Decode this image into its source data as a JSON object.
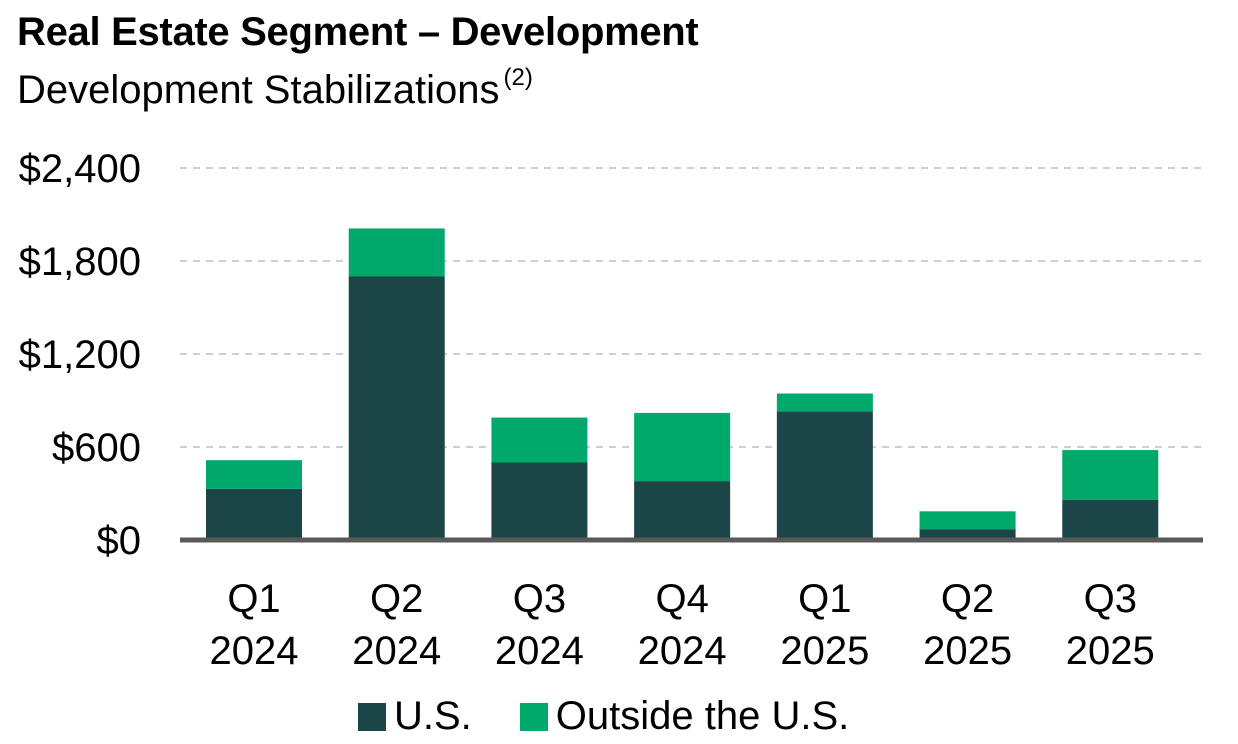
{
  "chart_data": {
    "type": "bar",
    "stacked": true,
    "title": "Real Estate Segment – Development",
    "subtitle": "Development Stabilizations",
    "subtitle_note": "(2)",
    "categories": [
      [
        "Q1",
        "2024"
      ],
      [
        "Q2",
        "2024"
      ],
      [
        "Q3",
        "2024"
      ],
      [
        "Q4",
        "2024"
      ],
      [
        "Q1",
        "2025"
      ],
      [
        "Q2",
        "2025"
      ],
      [
        "Q3",
        "2025"
      ]
    ],
    "series": [
      {
        "name": "U.S.",
        "color": "#1b4546",
        "values": [
          330,
          1700,
          500,
          380,
          830,
          70,
          260
        ]
      },
      {
        "name": "Outside the U.S.",
        "color": "#00a86b",
        "values": [
          185,
          310,
          290,
          440,
          115,
          115,
          320
        ]
      }
    ],
    "ylim": [
      0,
      2400
    ],
    "yticks": [
      {
        "value": 0,
        "label": "$0"
      },
      {
        "value": 600,
        "label": "$600"
      },
      {
        "value": 1200,
        "label": "$1,200"
      },
      {
        "value": 1800,
        "label": "$1,800"
      },
      {
        "value": 2400,
        "label": "$2,400"
      }
    ],
    "grid": true,
    "legend_position": "bottom",
    "xlabel": "",
    "ylabel": ""
  }
}
